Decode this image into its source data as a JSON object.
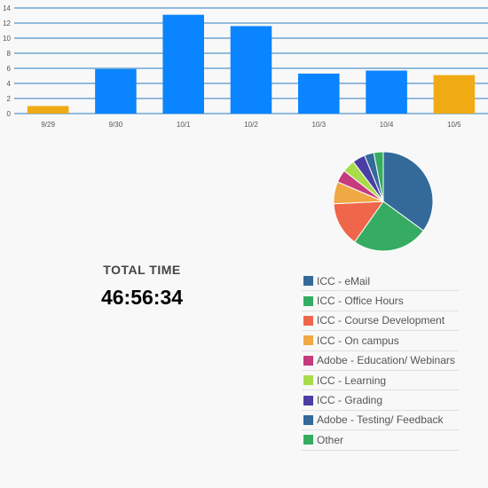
{
  "chart_data": [
    {
      "type": "bar",
      "categories": [
        "9/29",
        "9/30",
        "10/1",
        "10/2",
        "10/3",
        "10/4",
        "10/5"
      ],
      "values": [
        1,
        5.9,
        13.1,
        11.6,
        5.3,
        5.7,
        5.1
      ],
      "highlight": [
        true,
        false,
        false,
        false,
        false,
        false,
        true
      ],
      "yticks": [
        0,
        2,
        4,
        6,
        8,
        10,
        12,
        14
      ],
      "ylim": [
        0,
        14
      ],
      "grid": true,
      "colors": {
        "bar": "#0a84ff",
        "highlight": "#f0aa14",
        "grid": "#2a7bbf"
      }
    },
    {
      "type": "pie",
      "labels": [
        "ICC - eMail",
        "ICC - Office Hours",
        "ICC - Course Development",
        "ICC - On campus",
        "Adobe - Education/ Webinars",
        "ICC - Learning",
        "ICC - Grading",
        "Adobe - Testing/ Feedback",
        "Other"
      ],
      "values": [
        34,
        24,
        14,
        7,
        4,
        4,
        4,
        3,
        3
      ],
      "colors": [
        "#336a99",
        "#35ac62",
        "#ef664b",
        "#efa843",
        "#c63a7e",
        "#a8dc4b",
        "#4a3ea4",
        "#336a99",
        "#35ac62"
      ],
      "legend": "bottom-left"
    }
  ],
  "total": {
    "label": "TOTAL TIME",
    "value": "46:56:34"
  }
}
